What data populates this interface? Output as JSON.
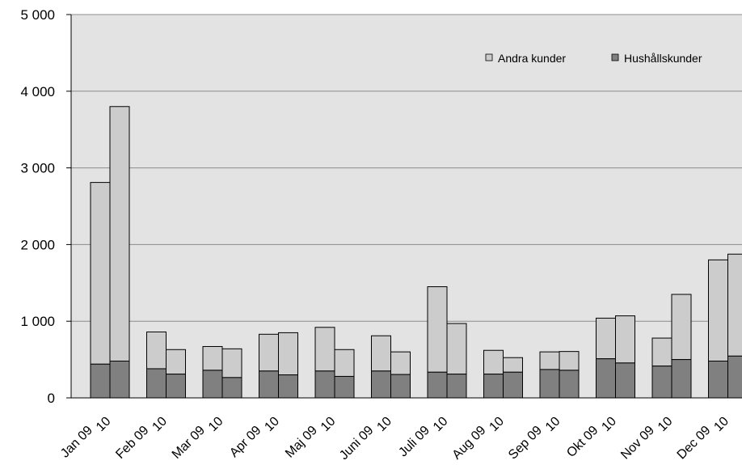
{
  "chart_data": {
    "type": "bar",
    "stacked": true,
    "grid": true,
    "legend_position": "top-right",
    "ylim": [
      0,
      5000
    ],
    "yticks": [
      "0",
      "1 000",
      "2 000",
      "3 000",
      "4 000",
      "5 000"
    ],
    "ytick_values": [
      0,
      1000,
      2000,
      3000,
      4000,
      5000
    ],
    "months": [
      "Jan",
      "Feb",
      "Mar",
      "Apr",
      "Maj",
      "Juni",
      "Juli",
      "Aug",
      "Sep",
      "Okt",
      "Nov",
      "Dec"
    ],
    "years": [
      "09",
      "10"
    ],
    "categories": [
      "Jan 09",
      "Jan 10",
      "Feb 09",
      "Feb 10",
      "Mar 09",
      "Mar 10",
      "Apr 09",
      "Apr 10",
      "Maj 09",
      "Maj 10",
      "Juni 09",
      "Juni 10",
      "Juli 09",
      "Juli 10",
      "Aug 09",
      "Aug 10",
      "Sep 09",
      "Sep 10",
      "Okt 09",
      "Okt 10",
      "Nov 09",
      "Nov 10",
      "Dec 09",
      "Dec 10"
    ],
    "series": [
      {
        "name": "Hushållskunder",
        "color": "#808080",
        "values": [
          440,
          480,
          380,
          310,
          360,
          265,
          350,
          300,
          350,
          280,
          350,
          305,
          335,
          310,
          310,
          335,
          370,
          360,
          510,
          455,
          415,
          500,
          480,
          545
        ]
      },
      {
        "name": "Andra kunder",
        "color": "#cccccc",
        "values": [
          2370,
          3320,
          480,
          320,
          310,
          375,
          480,
          550,
          570,
          350,
          460,
          295,
          1115,
          660,
          310,
          190,
          230,
          245,
          530,
          615,
          365,
          850,
          1320,
          1330
        ]
      }
    ],
    "legend": [
      "Andra kunder",
      "Hushållskunder"
    ]
  }
}
